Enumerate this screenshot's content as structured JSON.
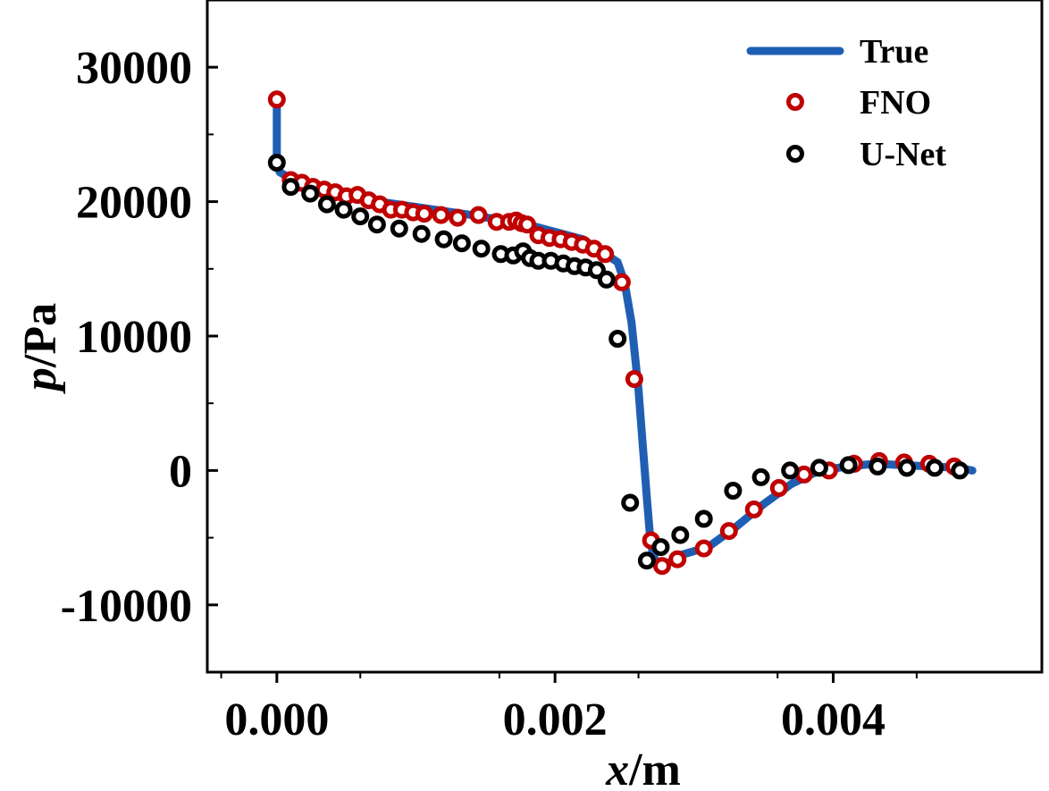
{
  "chart_data": {
    "type": "line",
    "xlabel_var": "x",
    "xlabel_unit": "/m",
    "ylabel_var": "p",
    "ylabel_unit": "/Pa",
    "xlim": [
      -0.0005,
      0.0055
    ],
    "ylim": [
      -15000,
      35000
    ],
    "xticks": [
      0.0,
      0.002,
      0.004
    ],
    "xtick_labels": [
      "0.000",
      "0.002",
      "0.004"
    ],
    "yticks": [
      -10000,
      0,
      10000,
      20000,
      30000
    ],
    "ytick_labels": [
      "-10000",
      "0",
      "10000",
      "20000",
      "30000"
    ],
    "grid": false,
    "legend_position": "top-right",
    "series": [
      {
        "name": "True",
        "style": "line",
        "color": "#1f5fb3",
        "x": [
          0.0,
          0.0,
          2e-05,
          0.0001,
          0.0003,
          0.0006,
          0.001,
          0.0014,
          0.0018,
          0.0022,
          0.00245,
          0.0025,
          0.00255,
          0.0026,
          0.00263,
          0.00266,
          0.00268,
          0.0027,
          0.00273,
          0.00277,
          0.0029,
          0.0031,
          0.0033,
          0.0035,
          0.0037,
          0.0039,
          0.0041,
          0.0043,
          0.0045,
          0.0047,
          0.0049,
          0.005
        ],
        "y": [
          27800,
          23000,
          22200,
          21700,
          21000,
          20200,
          19600,
          19000,
          18300,
          17200,
          15500,
          14000,
          11000,
          6000,
          2000,
          -2000,
          -4500,
          -6000,
          -7000,
          -7200,
          -6300,
          -5700,
          -4200,
          -2500,
          -1000,
          0,
          300,
          500,
          400,
          300,
          200,
          0
        ]
      },
      {
        "name": "FNO",
        "style": "marker",
        "color": "#c00000",
        "x": [
          0.0,
          0.0001,
          0.00018,
          0.00026,
          0.00034,
          0.00042,
          0.0005,
          0.00058,
          0.00066,
          0.00074,
          0.00082,
          0.0009,
          0.00098,
          0.00106,
          0.00118,
          0.0013,
          0.00145,
          0.00158,
          0.00167,
          0.00172,
          0.00176,
          0.0018,
          0.00188,
          0.00196,
          0.00204,
          0.00212,
          0.0022,
          0.00228,
          0.00236,
          0.00248,
          0.00257,
          0.00269,
          0.00277,
          0.00288,
          0.00307,
          0.00325,
          0.00343,
          0.00361,
          0.00379,
          0.00397,
          0.00415,
          0.00433,
          0.00451,
          0.00469,
          0.00487
        ],
        "y": [
          27600,
          21600,
          21400,
          21100,
          20900,
          20700,
          20400,
          20500,
          20100,
          19800,
          19400,
          19400,
          19200,
          19100,
          19000,
          18800,
          19000,
          18500,
          18500,
          18600,
          18400,
          18300,
          17500,
          17300,
          17200,
          17000,
          16800,
          16500,
          16100,
          14000,
          6800,
          -5200,
          -7100,
          -6600,
          -5800,
          -4500,
          -2900,
          -1300,
          -300,
          0,
          500,
          700,
          600,
          500,
          300
        ]
      },
      {
        "name": "U-Net",
        "style": "marker",
        "color": "#000000",
        "x": [
          0.0,
          0.0001,
          0.00024,
          0.00036,
          0.00048,
          0.0006,
          0.00072,
          0.00088,
          0.00104,
          0.0012,
          0.00133,
          0.00147,
          0.00161,
          0.0017,
          0.00177,
          0.00182,
          0.00188,
          0.00197,
          0.00206,
          0.00214,
          0.00222,
          0.0023,
          0.00237,
          0.00245,
          0.00254,
          0.00266,
          0.00276,
          0.0029,
          0.00307,
          0.00328,
          0.00348,
          0.00369,
          0.0039,
          0.00411,
          0.00432,
          0.00453,
          0.00473,
          0.00491
        ],
        "y": [
          22900,
          21100,
          20600,
          19800,
          19400,
          18900,
          18300,
          18000,
          17600,
          17200,
          16900,
          16500,
          16100,
          16000,
          16300,
          15800,
          15600,
          15600,
          15400,
          15200,
          15100,
          14900,
          14200,
          9800,
          -2400,
          -6700,
          -5700,
          -4800,
          -3600,
          -1500,
          -500,
          0,
          200,
          400,
          300,
          200,
          200,
          0
        ]
      }
    ]
  }
}
